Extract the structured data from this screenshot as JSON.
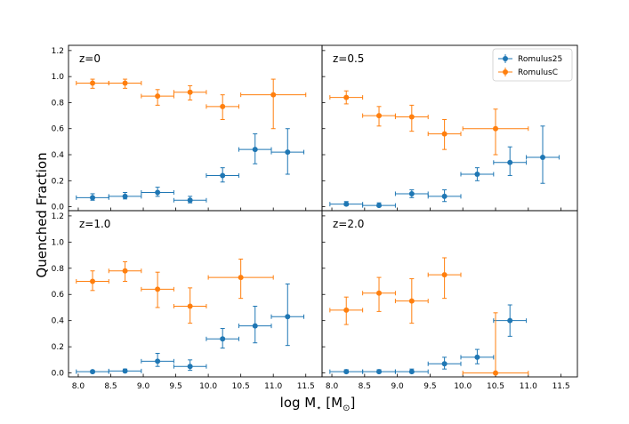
{
  "colors": {
    "series_1": "#1f77b4",
    "series_2": "#ff7f0e",
    "frame": "#000000",
    "legend_border": "#cccccc"
  },
  "chart_data": {
    "type": "scatter",
    "style": "errorbar",
    "layout": "2x2 grid, shared axes",
    "xlabel": "log M",
    "xlabel_sub": "⋆",
    "xlabel_unit_open": " [M",
    "xlabel_unit_sub": "⊙",
    "xlabel_unit_close": "]",
    "ylabel": "Quenched Fraction",
    "xlim": [
      7.85,
      11.75
    ],
    "ylim": [
      -0.03,
      1.24
    ],
    "xticks": [
      8.0,
      8.5,
      9.0,
      9.5,
      10.0,
      10.5,
      11.0,
      11.5
    ],
    "xtick_labels": [
      "8.0",
      "8.5",
      "9.0",
      "9.5",
      "10.0",
      "10.5",
      "11.0",
      "11.5"
    ],
    "yticks": [
      0.0,
      0.2,
      0.4,
      0.6,
      0.8,
      1.0,
      1.2
    ],
    "ytick_labels": [
      "0.0",
      "0.2",
      "0.4",
      "0.6",
      "0.8",
      "1.0",
      "1.2"
    ],
    "legend": {
      "placement": "top-right of panel z=0.5",
      "entries": [
        "Romulus25",
        "RomulusC"
      ]
    },
    "panels": [
      {
        "label": "z=0",
        "series": [
          {
            "name": "Romulus25",
            "x": [
              8.22,
              8.72,
              9.22,
              9.72,
              10.22,
              10.72,
              11.22
            ],
            "y": [
              0.07,
              0.08,
              0.11,
              0.05,
              0.24,
              0.44,
              0.42
            ],
            "xerr": [
              [
                0.25,
                0.25
              ],
              [
                0.25,
                0.25
              ],
              [
                0.25,
                0.25
              ],
              [
                0.25,
                0.25
              ],
              [
                0.25,
                0.25
              ],
              [
                0.25,
                0.25
              ],
              [
                0.25,
                0.25
              ]
            ],
            "yerr": [
              [
                0.02,
                0.03
              ],
              [
                0.02,
                0.03
              ],
              [
                0.03,
                0.04
              ],
              [
                0.02,
                0.03
              ],
              [
                0.05,
                0.06
              ],
              [
                0.11,
                0.12
              ],
              [
                0.17,
                0.18
              ]
            ]
          },
          {
            "name": "RomulusC",
            "x": [
              8.22,
              8.72,
              9.22,
              9.72,
              10.22,
              11.0
            ],
            "y": [
              0.95,
              0.95,
              0.85,
              0.88,
              0.77,
              0.86
            ],
            "xerr": [
              [
                0.25,
                0.25
              ],
              [
                0.25,
                0.25
              ],
              [
                0.25,
                0.25
              ],
              [
                0.25,
                0.25
              ],
              [
                0.25,
                0.25
              ],
              [
                0.5,
                0.5
              ]
            ],
            "yerr": [
              [
                0.04,
                0.03
              ],
              [
                0.04,
                0.03
              ],
              [
                0.07,
                0.05
              ],
              [
                0.06,
                0.05
              ],
              [
                0.1,
                0.09
              ],
              [
                0.26,
                0.12
              ]
            ]
          }
        ]
      },
      {
        "label": "z=0.5",
        "series": [
          {
            "name": "Romulus25",
            "x": [
              8.22,
              8.72,
              9.22,
              9.72,
              10.22,
              10.72,
              11.22
            ],
            "y": [
              0.02,
              0.01,
              0.1,
              0.08,
              0.25,
              0.34,
              0.38
            ],
            "xerr": [
              [
                0.25,
                0.25
              ],
              [
                0.25,
                0.25
              ],
              [
                0.25,
                0.25
              ],
              [
                0.25,
                0.25
              ],
              [
                0.25,
                0.25
              ],
              [
                0.25,
                0.25
              ],
              [
                0.25,
                0.25
              ]
            ],
            "yerr": [
              [
                0.01,
                0.02
              ],
              [
                0.01,
                0.02
              ],
              [
                0.03,
                0.03
              ],
              [
                0.04,
                0.05
              ],
              [
                0.05,
                0.05
              ],
              [
                0.1,
                0.12
              ],
              [
                0.2,
                0.24
              ]
            ]
          },
          {
            "name": "RomulusC",
            "x": [
              8.22,
              8.72,
              9.22,
              9.72,
              10.5
            ],
            "y": [
              0.84,
              0.7,
              0.69,
              0.56,
              0.6
            ],
            "xerr": [
              [
                0.25,
                0.25
              ],
              [
                0.25,
                0.25
              ],
              [
                0.25,
                0.25
              ],
              [
                0.25,
                0.25
              ],
              [
                0.5,
                0.5
              ]
            ],
            "yerr": [
              [
                0.05,
                0.05
              ],
              [
                0.08,
                0.07
              ],
              [
                0.11,
                0.09
              ],
              [
                0.12,
                0.11
              ],
              [
                0.2,
                0.15
              ]
            ]
          }
        ]
      },
      {
        "label": "z=1.0",
        "series": [
          {
            "name": "Romulus25",
            "x": [
              8.22,
              8.72,
              9.22,
              9.72,
              10.22,
              10.72,
              11.22
            ],
            "y": [
              0.01,
              0.015,
              0.09,
              0.05,
              0.26,
              0.36,
              0.43
            ],
            "xerr": [
              [
                0.25,
                0.25
              ],
              [
                0.25,
                0.25
              ],
              [
                0.25,
                0.25
              ],
              [
                0.25,
                0.25
              ],
              [
                0.25,
                0.25
              ],
              [
                0.25,
                0.25
              ],
              [
                0.25,
                0.25
              ]
            ],
            "yerr": [
              [
                0.01,
                0.01
              ],
              [
                0.01,
                0.015
              ],
              [
                0.04,
                0.06
              ],
              [
                0.03,
                0.05
              ],
              [
                0.07,
                0.08
              ],
              [
                0.13,
                0.15
              ],
              [
                0.22,
                0.25
              ]
            ]
          },
          {
            "name": "RomulusC",
            "x": [
              8.22,
              8.72,
              9.22,
              9.72,
              10.5
            ],
            "y": [
              0.7,
              0.78,
              0.64,
              0.51,
              0.73
            ],
            "xerr": [
              [
                0.25,
                0.25
              ],
              [
                0.25,
                0.25
              ],
              [
                0.25,
                0.25
              ],
              [
                0.25,
                0.25
              ],
              [
                0.5,
                0.5
              ]
            ],
            "yerr": [
              [
                0.07,
                0.08
              ],
              [
                0.08,
                0.07
              ],
              [
                0.14,
                0.13
              ],
              [
                0.13,
                0.14
              ],
              [
                0.16,
                0.14
              ]
            ]
          }
        ]
      },
      {
        "label": "z=2.0",
        "series": [
          {
            "name": "Romulus25",
            "x": [
              8.22,
              8.72,
              9.22,
              9.72,
              10.22,
              10.72
            ],
            "y": [
              0.01,
              0.01,
              0.01,
              0.07,
              0.12,
              0.4
            ],
            "xerr": [
              [
                0.25,
                0.25
              ],
              [
                0.25,
                0.25
              ],
              [
                0.25,
                0.25
              ],
              [
                0.25,
                0.25
              ],
              [
                0.25,
                0.25
              ],
              [
                0.25,
                0.25
              ]
            ],
            "yerr": [
              [
                0.01,
                0.015
              ],
              [
                0.01,
                0.015
              ],
              [
                0.01,
                0.02
              ],
              [
                0.04,
                0.05
              ],
              [
                0.05,
                0.06
              ],
              [
                0.12,
                0.12
              ]
            ]
          },
          {
            "name": "RomulusC",
            "x": [
              8.22,
              8.72,
              9.22,
              9.72,
              10.5
            ],
            "y": [
              0.48,
              0.61,
              0.55,
              0.75,
              0.0
            ],
            "xerr": [
              [
                0.25,
                0.25
              ],
              [
                0.25,
                0.25
              ],
              [
                0.25,
                0.25
              ],
              [
                0.25,
                0.25
              ],
              [
                0.5,
                0.5
              ]
            ],
            "yerr": [
              [
                0.11,
                0.1
              ],
              [
                0.14,
                0.12
              ],
              [
                0.17,
                0.17
              ],
              [
                0.18,
                0.13
              ],
              [
                0.0,
                0.46
              ]
            ]
          }
        ]
      }
    ]
  }
}
